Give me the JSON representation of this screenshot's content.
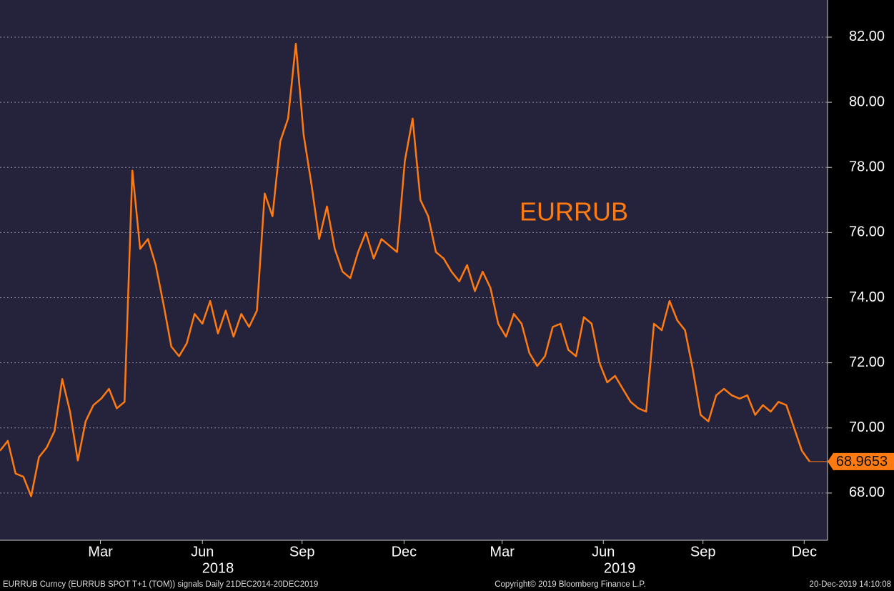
{
  "chart_data": {
    "type": "line",
    "annotation": "EURRUB",
    "footer_left": "EURRUB Curncy (EURRUB SPOT T+1 (TOM)) signals  Daily 21DEC2014-20DEC2019",
    "footer_center": "Copyright© 2019 Bloomberg Finance L.P.",
    "footer_right": "20-Dec-2019 14:10:08",
    "color": "#ff7b12",
    "grid": true,
    "values": [
      69.3,
      69.6,
      68.6,
      68.5,
      67.9,
      69.1,
      69.4,
      69.9,
      71.5,
      70.5,
      69.0,
      70.2,
      70.7,
      70.9,
      71.2,
      70.6,
      70.8,
      77.9,
      75.5,
      75.8,
      75.0,
      73.8,
      72.5,
      72.2,
      72.6,
      73.5,
      73.2,
      73.9,
      72.9,
      73.6,
      72.8,
      73.5,
      73.1,
      73.6,
      77.2,
      76.5,
      78.8,
      79.5,
      81.8,
      79.0,
      77.5,
      75.8,
      76.8,
      75.5,
      74.8,
      74.6,
      75.4,
      76.0,
      75.2,
      75.8,
      75.6,
      75.4,
      78.2,
      79.5,
      77.0,
      76.5,
      75.4,
      75.2,
      74.8,
      74.5,
      75.0,
      74.2,
      74.8,
      74.3,
      73.2,
      72.8,
      73.5,
      73.2,
      72.3,
      71.9,
      72.2,
      73.1,
      73.2,
      72.4,
      72.2,
      73.4,
      73.2,
      72.0,
      71.4,
      71.6,
      71.2,
      70.8,
      70.6,
      70.5,
      73.2,
      73.0,
      73.9,
      73.3,
      73.0,
      71.8,
      70.4,
      70.2,
      71.0,
      71.2,
      71.0,
      70.9,
      71.0,
      70.4,
      70.7,
      70.5,
      70.8,
      70.7,
      70.0,
      69.3,
      68.9653
    ],
    "xlim": [
      0,
      106.3
    ],
    "xticks": [
      {
        "value": 12.9,
        "label": "Mar"
      },
      {
        "value": 26.0,
        "label": "Jun"
      },
      {
        "value": 38.8,
        "label": "Sep"
      },
      {
        "value": 51.9,
        "label": "Dec"
      },
      {
        "value": 64.5,
        "label": "Mar"
      },
      {
        "value": 77.5,
        "label": "Jun"
      },
      {
        "value": 90.3,
        "label": "Sep"
      },
      {
        "value": 103.3,
        "label": "Dec"
      }
    ],
    "year_ticks": [
      {
        "value": 28.0,
        "label": "2018"
      },
      {
        "value": 79.6,
        "label": "2019"
      }
    ],
    "ylim": [
      66.55,
      83.14
    ],
    "yticks": [
      {
        "value": 68,
        "label": "68.00"
      },
      {
        "value": 70,
        "label": "70.00"
      },
      {
        "value": 72,
        "label": "72.00"
      },
      {
        "value": 74,
        "label": "74.00"
      },
      {
        "value": 76,
        "label": "76.00"
      },
      {
        "value": 78,
        "label": "78.00"
      },
      {
        "value": 80,
        "label": "80.00"
      },
      {
        "value": 82,
        "label": "82.00"
      }
    ]
  }
}
